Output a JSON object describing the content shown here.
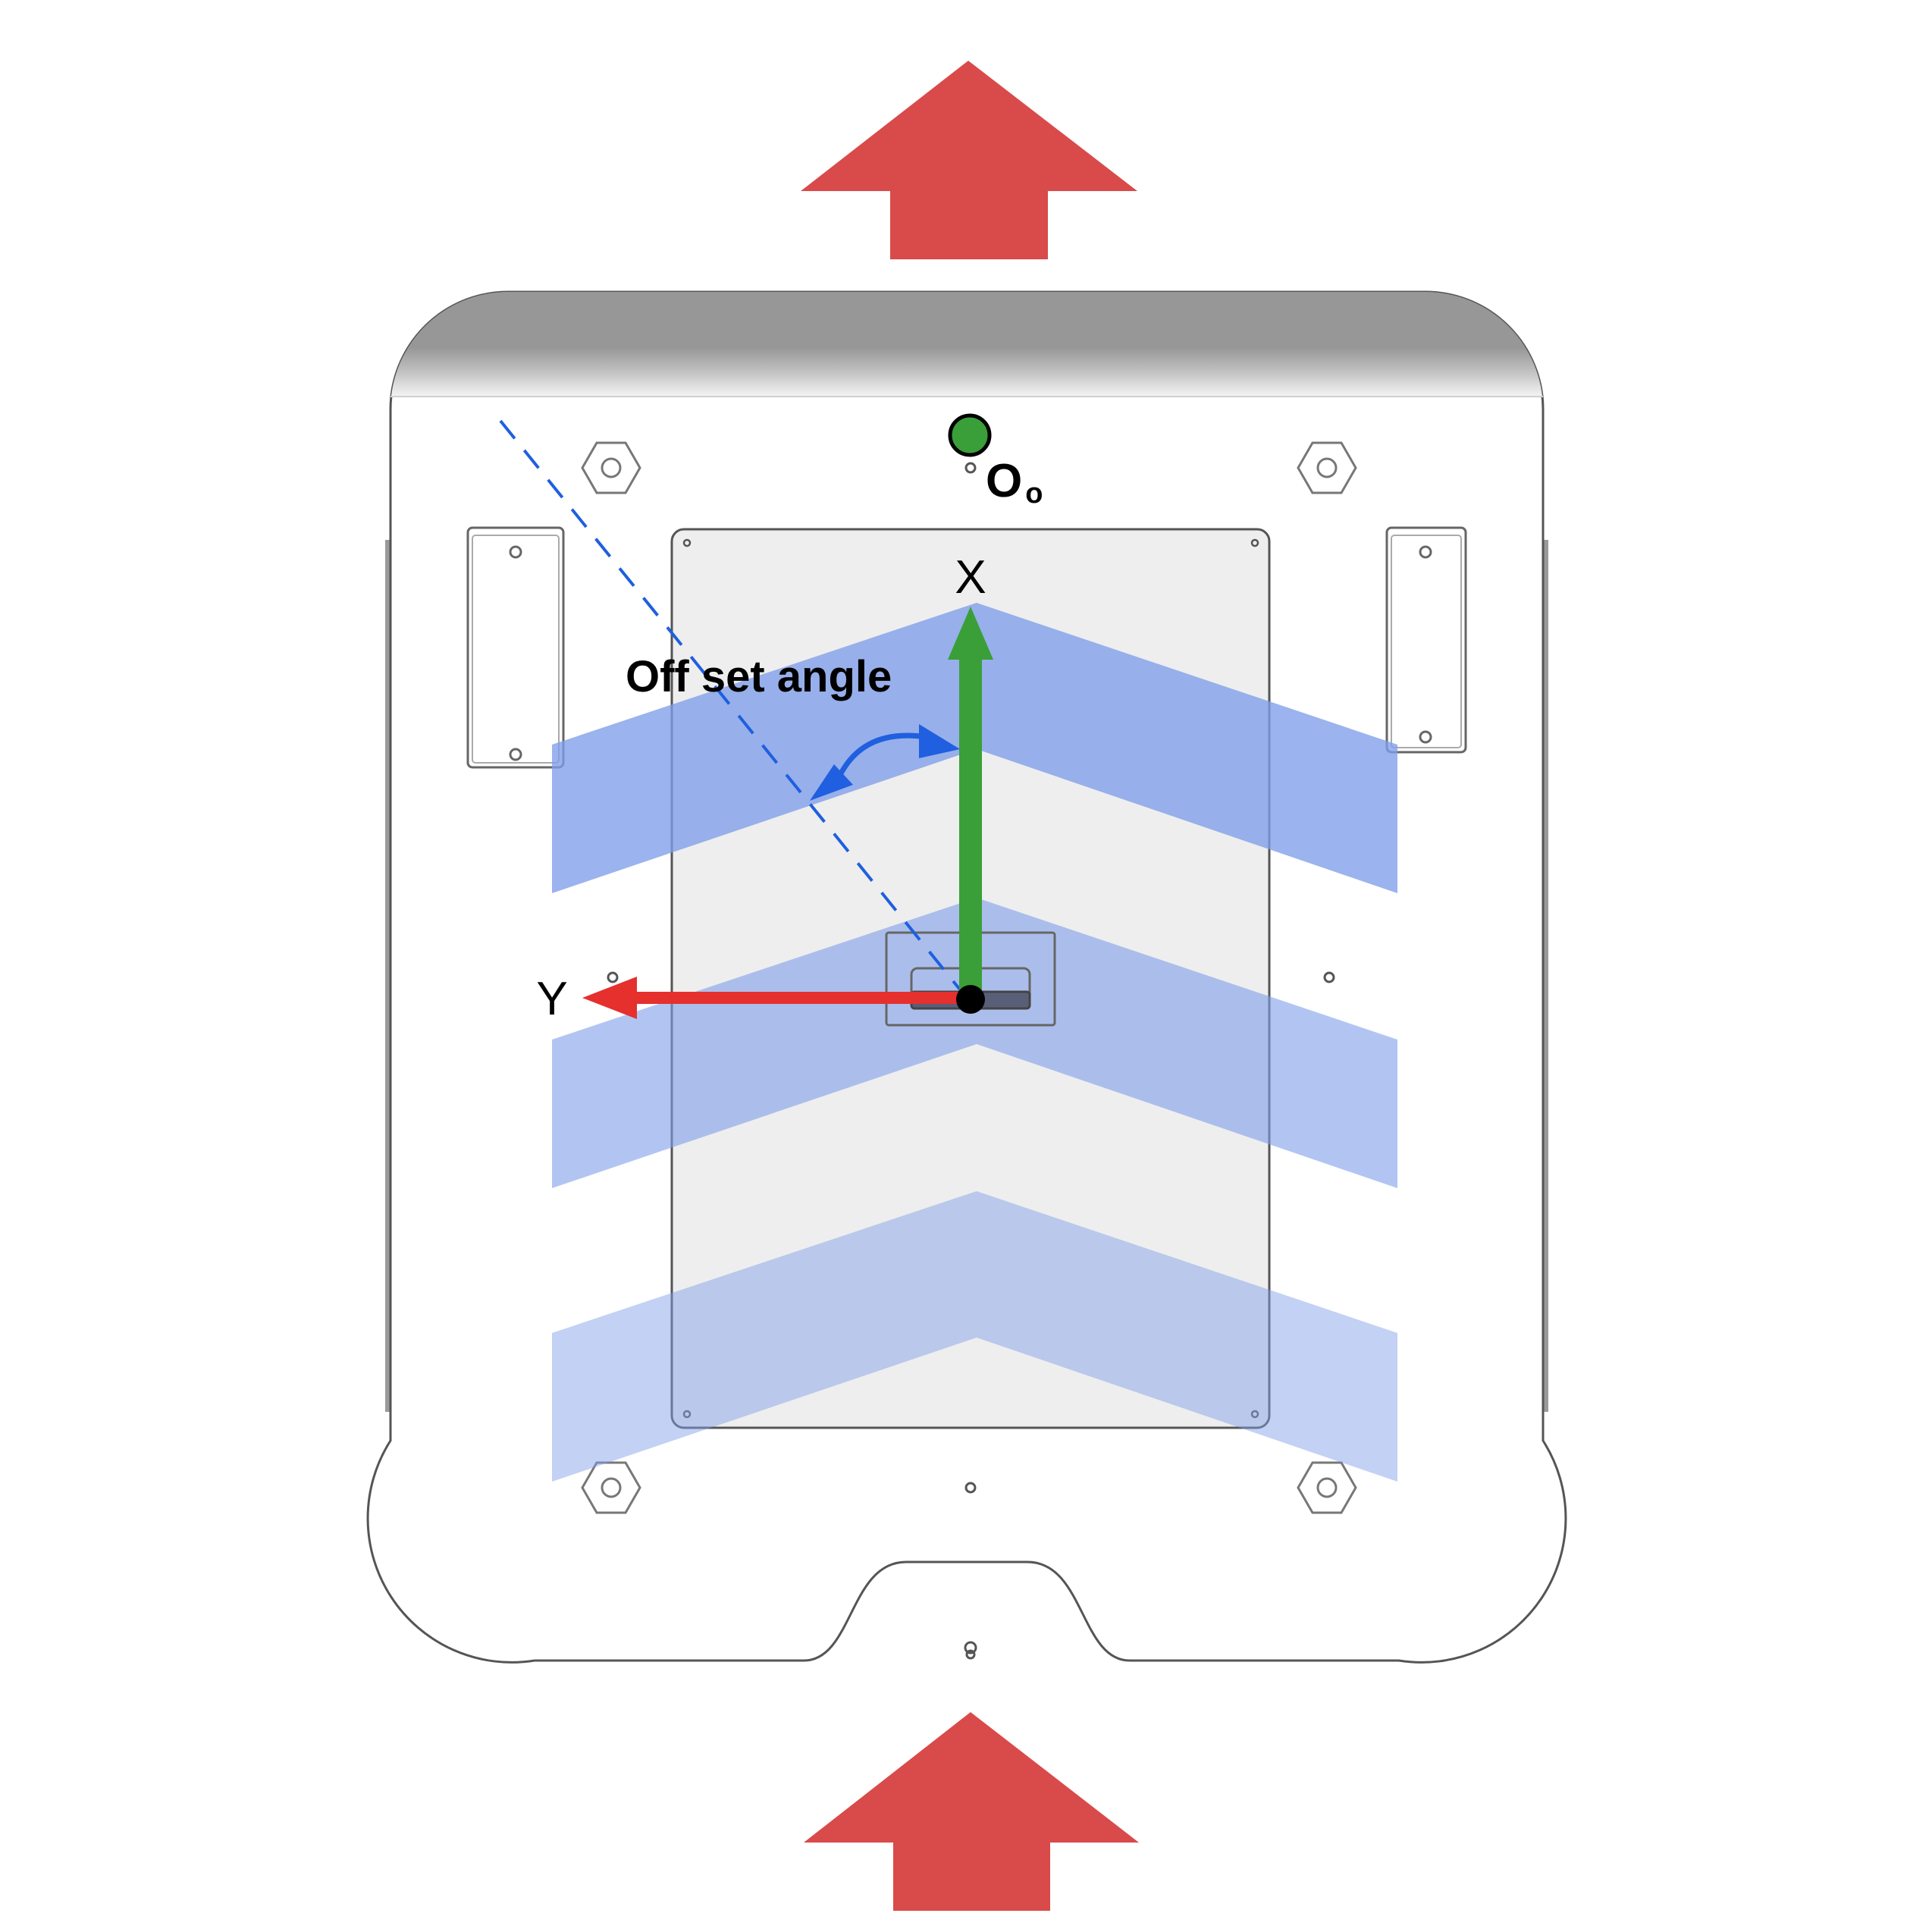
{
  "labels": {
    "origin_main": "O",
    "origin_sub": "o",
    "axis_x": "X",
    "axis_y": "Y",
    "offset_angle": "Off set angle"
  },
  "colors": {
    "travel_arrow": "#d94a4a",
    "chevron": "#7f9ee9",
    "axis_x": "#3a9f38",
    "axis_y": "#e5302e",
    "origin_marker": "#3a9f38",
    "reference_line": "#1f5fe0",
    "angle_arc": "#1f5fe0",
    "robot_top_band": "#979797",
    "robot_body": "#ffffff",
    "robot_outline": "#555555",
    "panel_fill": "#eeeeee"
  },
  "icons": {
    "travel_direction_top": "up-arrow-icon",
    "travel_direction_bottom": "up-arrow-icon",
    "origin": "circle-marker-icon",
    "center": "dot-icon"
  }
}
